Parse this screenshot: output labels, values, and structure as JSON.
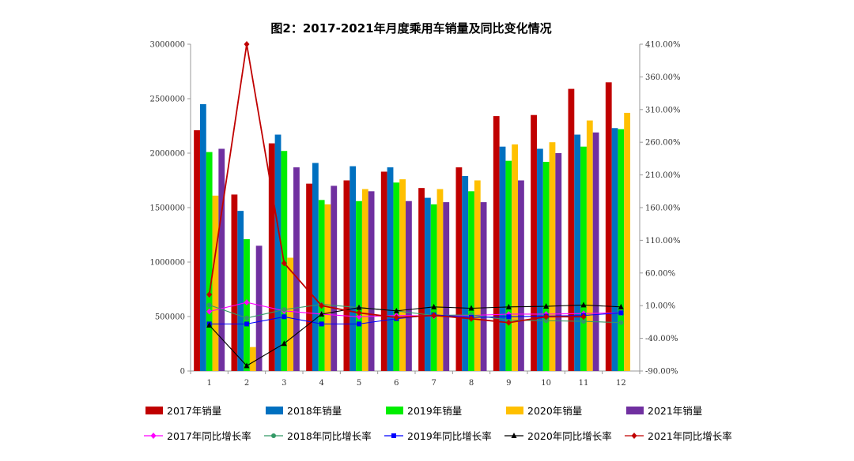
{
  "chart_data": {
    "type": "bar+line",
    "title": "图2：2017-2021年月度乘用车销量及同比变化情况",
    "categories": [
      "1",
      "2",
      "3",
      "4",
      "5",
      "6",
      "7",
      "8",
      "9",
      "10",
      "11",
      "12"
    ],
    "y_left": {
      "min": 0,
      "max": 3000000,
      "step": 500000,
      "tick_labels": [
        "0",
        "500000",
        "1000000",
        "1500000",
        "2000000",
        "2500000",
        "3000000"
      ]
    },
    "y_right": {
      "min": -90,
      "max": 410,
      "step": 50,
      "tick_labels": [
        "-90.00%",
        "-40.00%",
        "10.00%",
        "60.00%",
        "110.00%",
        "160.00%",
        "210.00%",
        "260.00%",
        "310.00%",
        "360.00%",
        "410.00%"
      ]
    },
    "bar_series": [
      {
        "name": "2017年销量",
        "color": "#c00000",
        "values": [
          2210000,
          1620000,
          2090000,
          1720000,
          1750000,
          1830000,
          1680000,
          1870000,
          2340000,
          2350000,
          2590000,
          2650000
        ]
      },
      {
        "name": "2018年销量",
        "color": "#0070c0",
        "values": [
          2450000,
          1470000,
          2170000,
          1910000,
          1880000,
          1870000,
          1590000,
          1790000,
          2060000,
          2040000,
          2170000,
          2230000
        ]
      },
      {
        "name": "2019年销量",
        "color": "#00ee00",
        "values": [
          2010000,
          1210000,
          2020000,
          1570000,
          1560000,
          1730000,
          1530000,
          1650000,
          1930000,
          1920000,
          2060000,
          2220000
        ]
      },
      {
        "name": "2020年销量",
        "color": "#ffc000",
        "values": [
          1610000,
          220000,
          1040000,
          1530000,
          1670000,
          1760000,
          1670000,
          1750000,
          2080000,
          2100000,
          2300000,
          2370000
        ]
      },
      {
        "name": "2021年销量",
        "color": "#7030a0",
        "values": [
          2040000,
          1150000,
          1870000,
          1700000,
          1650000,
          1560000,
          1550000,
          1550000,
          1750000,
          2000000,
          2190000,
          null
        ]
      }
    ],
    "line_series": [
      {
        "name": "2017年同比增长率",
        "color": "#ff00ff",
        "marker": "diamond",
        "values": [
          1,
          15,
          2,
          -3,
          -7,
          -5,
          -6,
          -5,
          -3,
          -3,
          -2,
          -1
        ]
      },
      {
        "name": "2018年同比增长率",
        "color": "#339966",
        "marker": "circle",
        "values": [
          11,
          -9,
          4,
          12,
          7,
          2,
          -5,
          -4,
          -12,
          -13,
          -14,
          -16
        ]
      },
      {
        "name": "2019年同比增长率",
        "color": "#0000ff",
        "marker": "square",
        "values": [
          -18,
          -18,
          -7,
          -18,
          -18,
          -10,
          -4,
          -8,
          -7,
          -6,
          -5,
          -1
        ]
      },
      {
        "name": "2020年同比增长率",
        "color": "#000000",
        "marker": "triangle",
        "values": [
          -20,
          -82,
          -48,
          -3,
          7,
          2,
          8,
          6,
          8,
          9,
          11,
          8
        ]
      },
      {
        "name": "2021年同比增长率",
        "color": "#c00000",
        "marker": "diamond",
        "values": [
          27,
          410,
          75,
          10,
          -1,
          -8,
          -5,
          -10,
          -16,
          -7,
          -7,
          null
        ]
      }
    ]
  }
}
